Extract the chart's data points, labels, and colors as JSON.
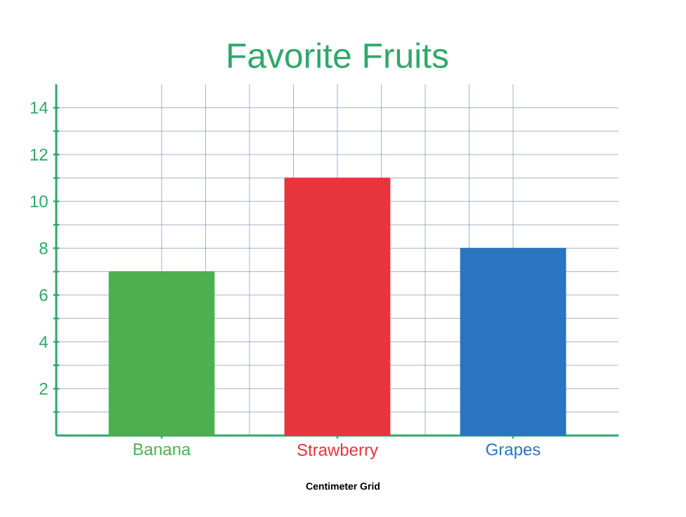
{
  "chart_data": {
    "type": "bar",
    "title": "Favorite Fruits",
    "categories": [
      "Banana",
      "Strawberry",
      "Grapes"
    ],
    "values": [
      7,
      11,
      8
    ],
    "colors": [
      "#4cb050",
      "#e8343c",
      "#2a74c0"
    ],
    "ylim": [
      0,
      15
    ],
    "yticks": [
      {
        "value": 1,
        "label": null
      },
      2,
      {
        "value": 3,
        "label": null
      },
      4,
      {
        "value": 5,
        "label": null
      },
      6,
      {
        "value": 7,
        "label": null
      },
      8,
      {
        "value": 9,
        "label": null
      },
      10,
      {
        "value": 11,
        "label": null
      },
      12,
      {
        "value": 13,
        "label": null
      },
      14
    ],
    "grid": true,
    "annotations": [
      "Centimeter Grid"
    ]
  }
}
